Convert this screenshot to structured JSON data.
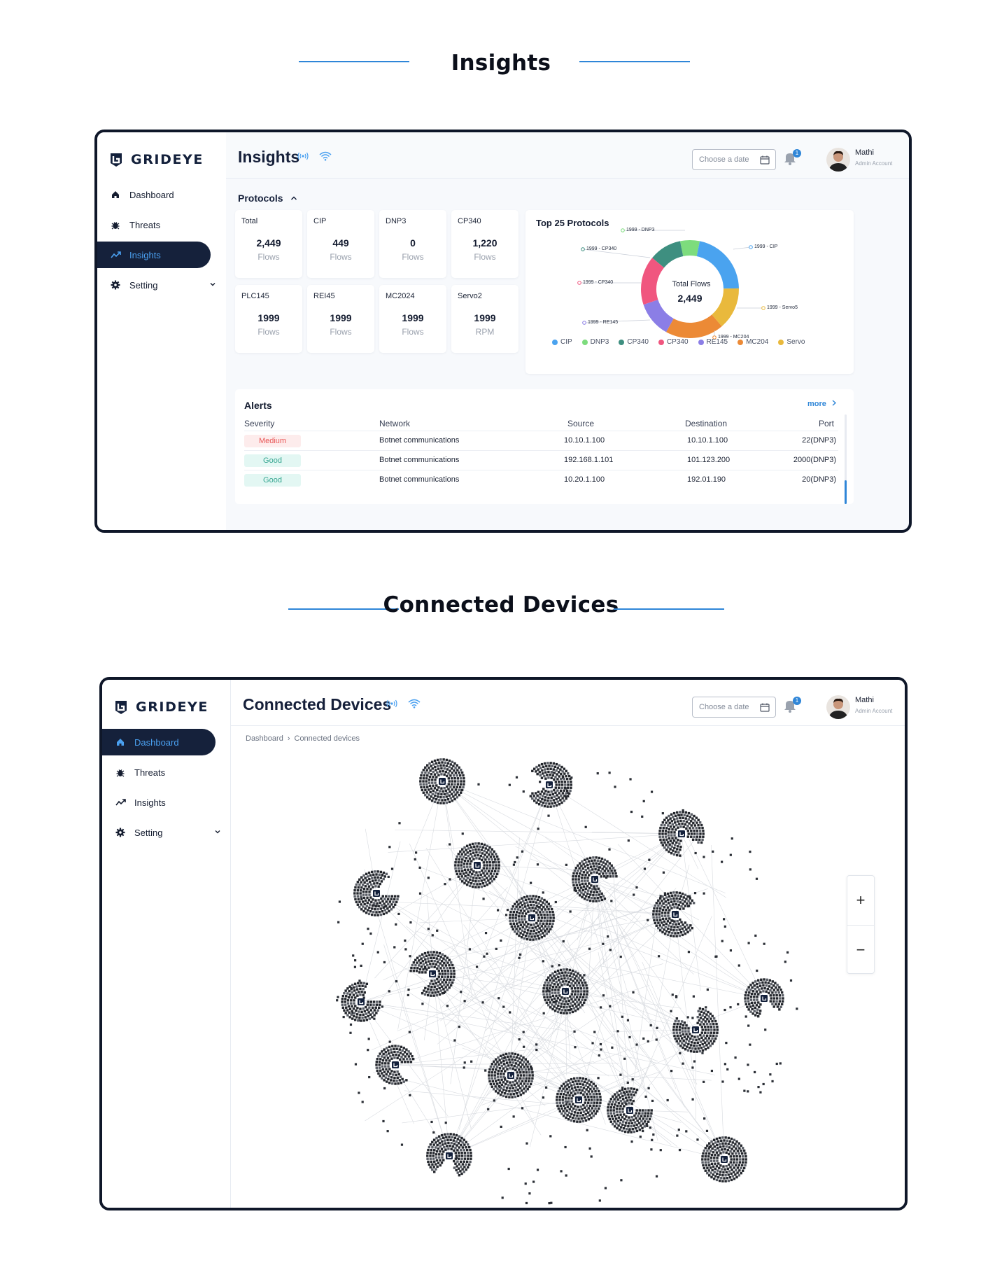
{
  "headings": {
    "section1": "Insights",
    "section2": "Connected Devices"
  },
  "brand": {
    "name": "GRIDEYE"
  },
  "screen1": {
    "nav": [
      {
        "label": "Dashboard",
        "icon": "home-icon",
        "active": false
      },
      {
        "label": "Threats",
        "icon": "bug-icon",
        "active": false
      },
      {
        "label": "Insights",
        "icon": "trend-icon",
        "active": true
      },
      {
        "label": "Setting",
        "icon": "gear-icon",
        "active": false
      }
    ],
    "title": "Insights",
    "date_placeholder": "Choose a date",
    "notifications": "1",
    "user": {
      "name": "Mathi",
      "role": "Admin Account"
    },
    "protocols_heading": "Protocols",
    "cards": [
      {
        "name": "Total",
        "value": "2,449",
        "unit": "Flows"
      },
      {
        "name": "CIP",
        "value": "449",
        "unit": "Flows"
      },
      {
        "name": "DNP3",
        "value": "0",
        "unit": "Flows"
      },
      {
        "name": "CP340",
        "value": "1,220",
        "unit": "Flows"
      },
      {
        "name": "PLC145",
        "value": "1999",
        "unit": "Flows"
      },
      {
        "name": "REI45",
        "value": "1999",
        "unit": "Flows"
      },
      {
        "name": "MC2024",
        "value": "1999",
        "unit": "Flows"
      },
      {
        "name": "Servo2",
        "value": "1999",
        "unit": "RPM"
      }
    ],
    "top_protocols": {
      "title": "Top 25 Protocols",
      "center_label": "Total Flows",
      "center_value": "2,449",
      "slice_labels": [
        "1999 - DNP3",
        "1999 - CIP",
        "1999 - CP340",
        "1999 - CP340",
        "1999 - Servo5",
        "1999 - RE145",
        "1999 - MC204"
      ]
    },
    "alerts": {
      "title": "Alerts",
      "more": "more",
      "columns": [
        "Severity",
        "Network",
        "Source",
        "Destination",
        "Port"
      ],
      "rows": [
        {
          "severity": "Medium",
          "network": "Botnet communications",
          "source": "10.10.1.100",
          "destination": "10.10.1.100",
          "port": "22(DNP3)"
        },
        {
          "severity": "Good",
          "network": "Botnet communications",
          "source": "192.168.1.101",
          "destination": "101.123.200",
          "port": "2000(DNP3)"
        },
        {
          "severity": "Good",
          "network": "Botnet communications",
          "source": "10.20.1.100",
          "destination": "192.01.190",
          "port": "20(DNP3)"
        }
      ]
    }
  },
  "chart_data": {
    "type": "pie",
    "title": "Top 25 Protocols",
    "categories": [
      "CIP",
      "DNP3",
      "CP340",
      "CP340",
      "RE145",
      "MC204",
      "Servo"
    ],
    "values": [
      20,
      6,
      10,
      15,
      11,
      18,
      13
    ],
    "colors": [
      "#4aa3ef",
      "#7ddc7d",
      "#3e8f80",
      "#f0567f",
      "#8b7ee6",
      "#ec8a36",
      "#e9b93c"
    ],
    "legend": [
      "CIP",
      "DNP3",
      "CP340",
      "CP340",
      "RE145",
      "MC204",
      "Servo"
    ],
    "legend_position": "bottom"
  },
  "screen2": {
    "nav": [
      {
        "label": "Dashboard",
        "icon": "home-icon",
        "active": true
      },
      {
        "label": "Threats",
        "icon": "bug-icon",
        "active": false
      },
      {
        "label": "Insights",
        "icon": "trend-icon",
        "active": false
      },
      {
        "label": "Setting",
        "icon": "gear-icon",
        "active": false
      }
    ],
    "title": "Connected Devices",
    "date_placeholder": "Choose a date",
    "notifications": "1",
    "user": {
      "name": "Mathi",
      "role": "Admin Account"
    },
    "breadcrumb": [
      "Dashboard",
      "Connected devices"
    ],
    "zoom_in": "+",
    "zoom_out": "−"
  }
}
